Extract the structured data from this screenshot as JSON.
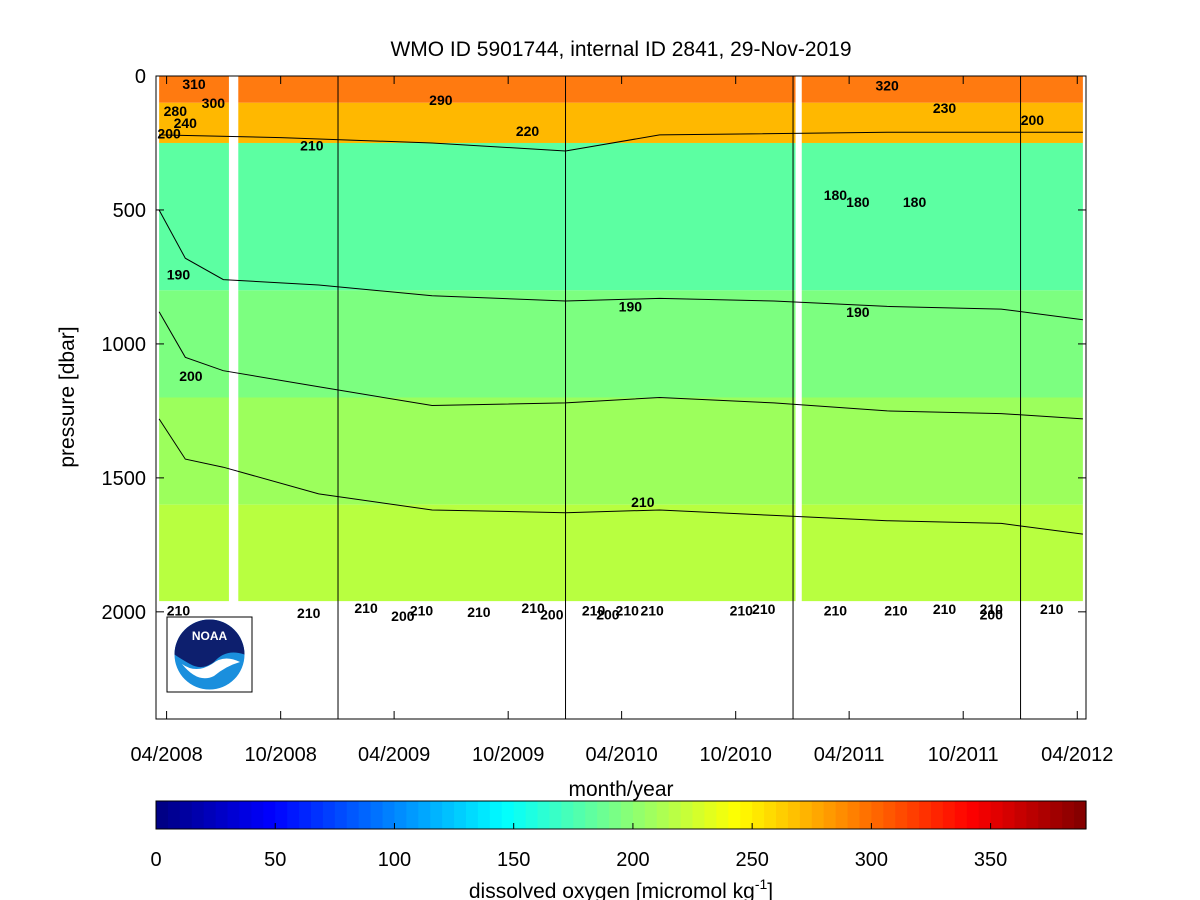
{
  "chart_data": {
    "type": "heatmap",
    "title": "WMO ID 5901744, internal ID 2841, 29-Nov-2019",
    "xlabel": "month/year",
    "ylabel": "pressure [dbar]",
    "x_ticks": [
      "04/2008",
      "10/2008",
      "04/2009",
      "10/2009",
      "04/2010",
      "10/2010",
      "04/2011",
      "10/2011",
      "04/2012"
    ],
    "x_tick_dates": [
      "2008-04-01",
      "2008-10-01",
      "2009-04-01",
      "2009-10-01",
      "2010-04-01",
      "2010-10-01",
      "2011-04-01",
      "2011-10-01",
      "2012-04-01"
    ],
    "xlim": [
      "2008-03-15",
      "2012-04-15"
    ],
    "ylim": [
      2400,
      0
    ],
    "y_ticks": [
      0,
      500,
      1000,
      1500,
      2000
    ],
    "y_tick_labels": [
      "0",
      "500",
      "1000",
      "1500",
      "2000"
    ],
    "year_markers": [
      "2009-01-01",
      "2010-01-01",
      "2011-01-01",
      "2012-01-01"
    ],
    "data_gaps": [
      {
        "start": "2008-07-10",
        "end": "2008-07-25"
      },
      {
        "start": "2011-01-05",
        "end": "2011-01-15"
      }
    ],
    "data_extent": {
      "start": "2008-03-20",
      "end": "2012-04-10",
      "max_pressure": 1960
    },
    "colorbar": {
      "label": "dissolved oxygen [micromol kg",
      "label_superscript": "-1",
      "label_close": "]",
      "min": 0,
      "max": 390,
      "ticks": [
        "0",
        "50",
        "100",
        "150",
        "200",
        "250",
        "300",
        "350"
      ],
      "colormap": "jet"
    },
    "bands": [
      {
        "p_top": 0,
        "p_bottom": 100,
        "value": 305,
        "color": "#ff7a10"
      },
      {
        "p_top": 100,
        "p_bottom": 250,
        "value": 230,
        "color": "#ffb800"
      },
      {
        "p_top": 250,
        "p_bottom": 800,
        "value": 185,
        "color": "#5cffa2"
      },
      {
        "p_top": 800,
        "p_bottom": 1200,
        "value": 195,
        "color": "#7cff80"
      },
      {
        "p_top": 1200,
        "p_bottom": 1600,
        "value": 205,
        "color": "#9cff5c"
      },
      {
        "p_top": 1600,
        "p_bottom": 1960,
        "value": 212,
        "color": "#b8ff40"
      }
    ],
    "contours": [
      {
        "level": 190,
        "points": [
          [
            "2008-03-20",
            500
          ],
          [
            "2008-05-01",
            680
          ],
          [
            "2008-07-01",
            760
          ],
          [
            "2008-12-01",
            780
          ],
          [
            "2009-06-01",
            820
          ],
          [
            "2010-01-01",
            840
          ],
          [
            "2010-06-01",
            830
          ],
          [
            "2010-12-01",
            840
          ],
          [
            "2011-06-01",
            860
          ],
          [
            "2011-12-01",
            870
          ],
          [
            "2012-04-10",
            910
          ]
        ]
      },
      {
        "level": 200,
        "points": [
          [
            "2008-03-20",
            880
          ],
          [
            "2008-05-01",
            1050
          ],
          [
            "2008-07-01",
            1100
          ],
          [
            "2008-12-01",
            1160
          ],
          [
            "2009-06-01",
            1230
          ],
          [
            "2010-01-01",
            1220
          ],
          [
            "2010-06-01",
            1200
          ],
          [
            "2010-12-01",
            1220
          ],
          [
            "2011-06-01",
            1250
          ],
          [
            "2011-12-01",
            1260
          ],
          [
            "2012-04-10",
            1280
          ]
        ]
      },
      {
        "level": 210,
        "points": [
          [
            "2008-03-20",
            1280
          ],
          [
            "2008-05-01",
            1430
          ],
          [
            "2008-07-01",
            1460
          ],
          [
            "2008-12-01",
            1560
          ],
          [
            "2009-06-01",
            1620
          ],
          [
            "2010-01-01",
            1630
          ],
          [
            "2010-06-01",
            1620
          ],
          [
            "2010-12-01",
            1640
          ],
          [
            "2011-06-01",
            1660
          ],
          [
            "2011-12-01",
            1670
          ],
          [
            "2012-04-10",
            1710
          ]
        ]
      },
      {
        "level": 220,
        "points": [
          [
            "2008-03-20",
            220
          ],
          [
            "2008-10-01",
            230
          ],
          [
            "2009-06-01",
            250
          ],
          [
            "2010-01-01",
            280
          ],
          [
            "2010-06-01",
            220
          ],
          [
            "2011-06-01",
            210
          ],
          [
            "2012-04-10",
            210
          ]
        ]
      }
    ],
    "contour_labels": [
      {
        "text": "310",
        "x": "2008-05-15",
        "p": 30
      },
      {
        "text": "300",
        "x": "2008-06-15",
        "p": 100
      },
      {
        "text": "280",
        "x": "2008-04-15",
        "p": 130
      },
      {
        "text": "240",
        "x": "2008-05-01",
        "p": 175
      },
      {
        "text": "200",
        "x": "2008-04-05",
        "p": 215
      },
      {
        "text": "210",
        "x": "2008-11-20",
        "p": 260
      },
      {
        "text": "290",
        "x": "2009-06-15",
        "p": 90
      },
      {
        "text": "220",
        "x": "2009-11-01",
        "p": 205
      },
      {
        "text": "320",
        "x": "2011-06-01",
        "p": 35
      },
      {
        "text": "230",
        "x": "2011-09-01",
        "p": 120
      },
      {
        "text": "200",
        "x": "2012-01-20",
        "p": 165
      },
      {
        "text": "180",
        "x": "2011-03-10",
        "p": 445
      },
      {
        "text": "180",
        "x": "2011-04-15",
        "p": 470
      },
      {
        "text": "180",
        "x": "2011-07-15",
        "p": 470
      },
      {
        "text": "190",
        "x": "2008-04-20",
        "p": 740
      },
      {
        "text": "190",
        "x": "2010-04-15",
        "p": 860
      },
      {
        "text": "190",
        "x": "2011-04-15",
        "p": 880
      },
      {
        "text": "200",
        "x": "2008-05-10",
        "p": 1120
      },
      {
        "text": "210",
        "x": "2010-05-05",
        "p": 1590
      },
      {
        "text": "210",
        "x": "2008-04-20",
        "p": 1995
      },
      {
        "text": "210",
        "x": "2008-11-15",
        "p": 2005
      },
      {
        "text": "210",
        "x": "2009-02-15",
        "p": 1985
      },
      {
        "text": "200",
        "x": "2009-04-15",
        "p": 2015
      },
      {
        "text": "210",
        "x": "2009-05-15",
        "p": 1995
      },
      {
        "text": "210",
        "x": "2009-08-15",
        "p": 2000
      },
      {
        "text": "210",
        "x": "2009-11-10",
        "p": 1985
      },
      {
        "text": "200",
        "x": "2009-12-10",
        "p": 2010
      },
      {
        "text": "210",
        "x": "2010-02-15",
        "p": 1995
      },
      {
        "text": "200",
        "x": "2010-03-10",
        "p": 2010
      },
      {
        "text": "210",
        "x": "2010-04-10",
        "p": 1995
      },
      {
        "text": "210",
        "x": "2010-05-20",
        "p": 1995
      },
      {
        "text": "210",
        "x": "2010-10-10",
        "p": 1995
      },
      {
        "text": "210",
        "x": "2010-11-15",
        "p": 1990
      },
      {
        "text": "210",
        "x": "2011-03-10",
        "p": 1995
      },
      {
        "text": "210",
        "x": "2011-06-15",
        "p": 1995
      },
      {
        "text": "210",
        "x": "2011-09-01",
        "p": 1990
      },
      {
        "text": "210",
        "x": "2011-11-15",
        "p": 1990
      },
      {
        "text": "200",
        "x": "2011-11-15",
        "p": 2010
      },
      {
        "text": "210",
        "x": "2012-02-20",
        "p": 1990
      }
    ]
  },
  "logo": {
    "text": "NOAA"
  }
}
